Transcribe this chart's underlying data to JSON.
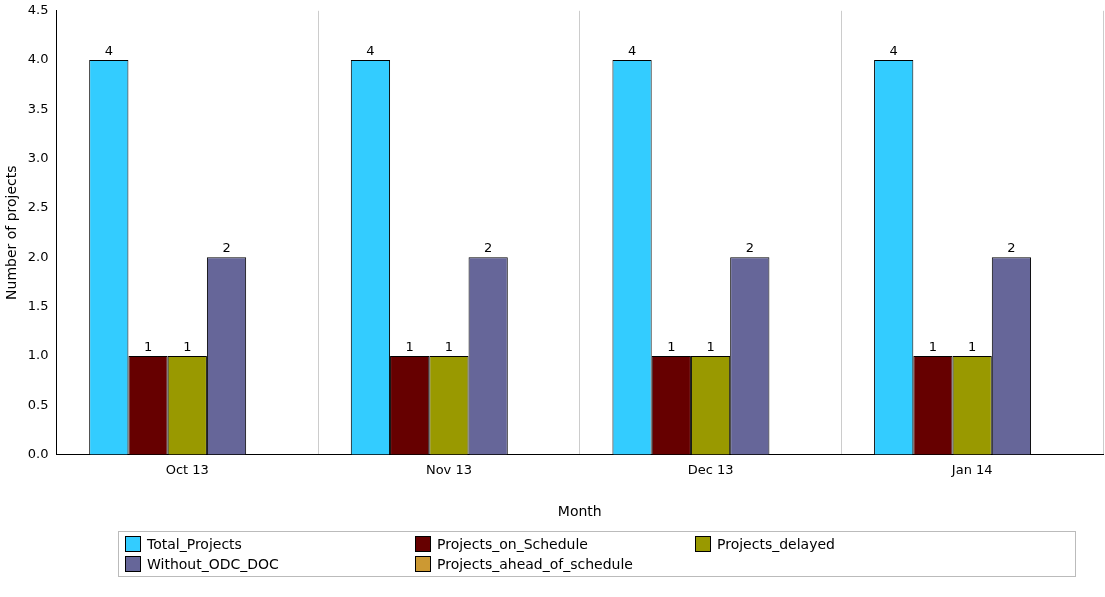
{
  "chart_data": {
    "type": "bar",
    "xlabel": "Month",
    "ylabel": "Number of projects",
    "categories": [
      "Oct 13",
      "Nov 13",
      "Dec 13",
      "Jan 14"
    ],
    "series": [
      {
        "name": "Total_Projects",
        "color": "#33ccff",
        "values": [
          4,
          4,
          4,
          4
        ]
      },
      {
        "name": "Projects_on_Schedule",
        "color": "#660000",
        "values": [
          1,
          1,
          1,
          1
        ]
      },
      {
        "name": "Projects_delayed",
        "color": "#999900",
        "values": [
          1,
          1,
          1,
          1
        ]
      },
      {
        "name": "Without_ODC_DOC",
        "color": "#666699",
        "values": [
          2,
          2,
          2,
          2
        ]
      },
      {
        "name": "Projects_ahead_of_schedule",
        "color": "#cc9933",
        "values": [
          null,
          null,
          null,
          null
        ]
      }
    ],
    "ylim": [
      0,
      4.5
    ],
    "yticks": [
      {
        "value": 0,
        "label": "0.0"
      },
      {
        "value": 0.5,
        "label": "0.5"
      },
      {
        "value": 1,
        "label": "1.0"
      },
      {
        "value": 1.5,
        "label": "1.5"
      },
      {
        "value": 2,
        "label": "2.0"
      },
      {
        "value": 2.5,
        "label": "2.5"
      },
      {
        "value": 3,
        "label": "3.0"
      },
      {
        "value": 3.5,
        "label": "3.5"
      },
      {
        "value": 4,
        "label": "4.0"
      },
      {
        "value": 4.5,
        "label": "4.5"
      }
    ],
    "grid": "x",
    "legend": "bottom",
    "data_labels": true
  }
}
